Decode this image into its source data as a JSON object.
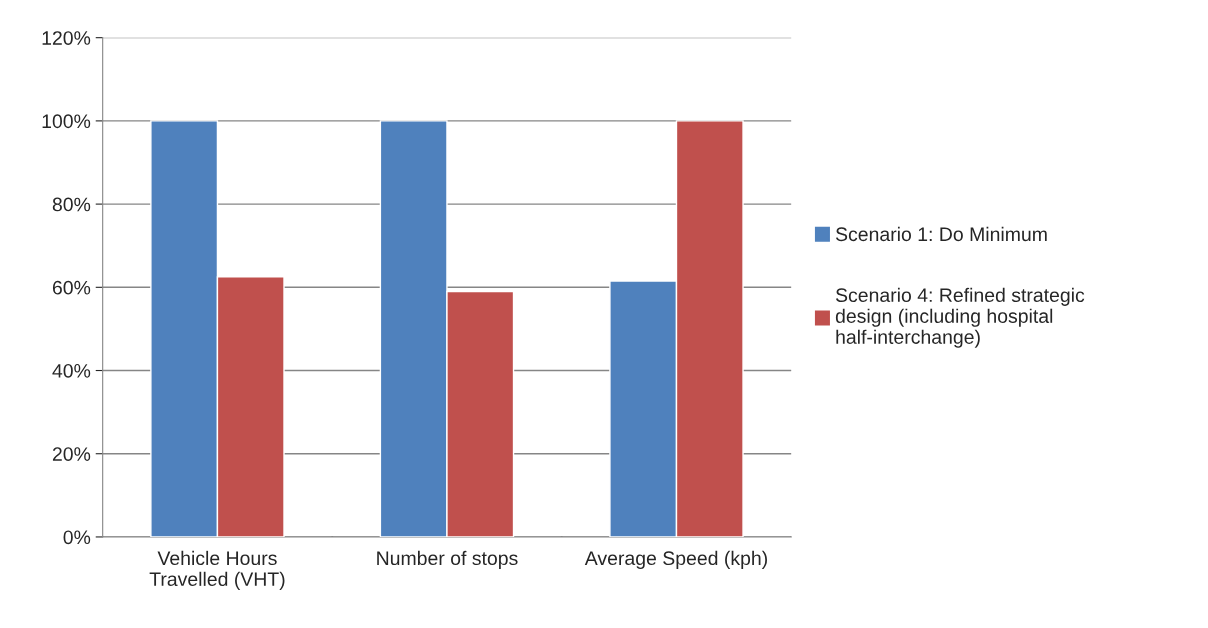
{
  "chart_data": {
    "type": "bar",
    "categories": [
      "Vehicle Hours Travelled (VHT)",
      "Number of stops",
      "Average Speed (kph)"
    ],
    "series": [
      {
        "name": "Scenario 1: Do Minimum",
        "color": "#4f81bd",
        "values": [
          100,
          100,
          61.5
        ]
      },
      {
        "name": "Scenario 4: Refined strategic design (including hospital half-interchange)",
        "color": "#c0504d",
        "values": [
          62.5,
          59,
          100
        ]
      }
    ],
    "ylim": [
      0,
      120
    ],
    "yticks": [
      {
        "value": 0,
        "label": "0%"
      },
      {
        "value": 20,
        "label": "20%"
      },
      {
        "value": 40,
        "label": "40%"
      },
      {
        "value": 60,
        "label": "60%"
      },
      {
        "value": 80,
        "label": "80%"
      },
      {
        "value": 100,
        "label": "100%"
      },
      {
        "value": 120,
        "label": "120%"
      }
    ],
    "grid": "y",
    "legend": "right"
  }
}
